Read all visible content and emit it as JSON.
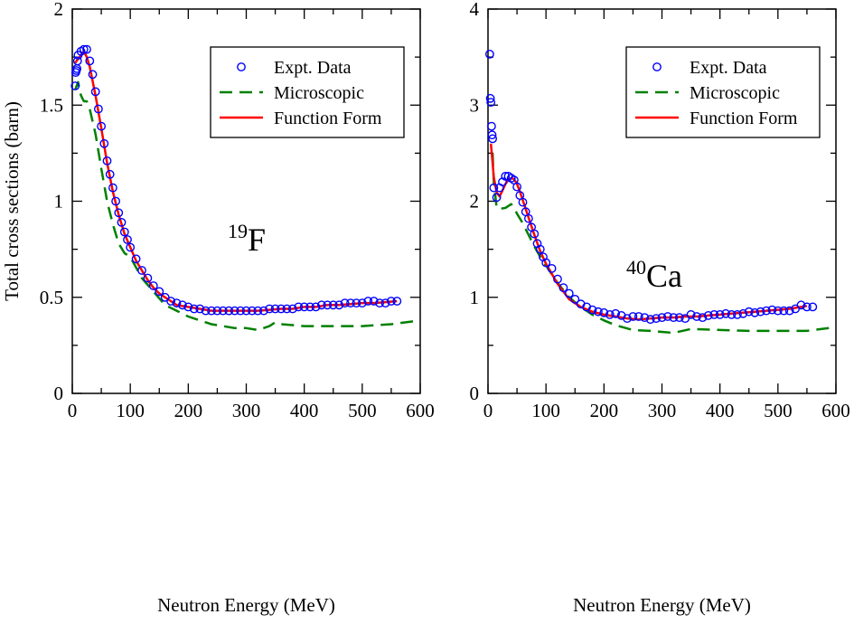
{
  "chart_data": [
    {
      "type": "scatter",
      "panel": "left",
      "annotation": {
        "mass": "19",
        "symbol": "F"
      },
      "xlabel": "Neutron Energy (MeV)",
      "ylabel": "Total cross sections (barn)",
      "xlim": [
        0,
        600
      ],
      "ylim": [
        0,
        2
      ],
      "xticks": [
        0,
        100,
        200,
        300,
        400,
        500,
        600
      ],
      "yticks": [
        0,
        0.5,
        1,
        1.5,
        2
      ],
      "ytick_labels": [
        "0",
        "0.5",
        "1",
        "1.5",
        "2"
      ],
      "legend_position": "top-right",
      "series": [
        {
          "name": "Expt. Data",
          "style": "open-circle",
          "color": "#0000ff",
          "x": [
            5,
            6,
            7,
            8,
            9,
            10,
            15,
            20,
            25,
            30,
            35,
            40,
            45,
            50,
            55,
            60,
            65,
            70,
            75,
            80,
            85,
            90,
            95,
            100,
            110,
            120,
            130,
            140,
            150,
            160,
            170,
            180,
            190,
            200,
            210,
            220,
            230,
            240,
            250,
            260,
            270,
            280,
            290,
            300,
            310,
            320,
            330,
            340,
            350,
            360,
            370,
            380,
            390,
            400,
            410,
            420,
            430,
            440,
            450,
            460,
            470,
            480,
            490,
            500,
            510,
            520,
            530,
            540,
            550,
            560
          ],
          "y": [
            1.6,
            1.67,
            1.68,
            1.69,
            1.73,
            1.76,
            1.78,
            1.79,
            1.79,
            1.73,
            1.66,
            1.57,
            1.48,
            1.39,
            1.3,
            1.21,
            1.14,
            1.07,
            1.0,
            0.94,
            0.89,
            0.84,
            0.8,
            0.76,
            0.7,
            0.64,
            0.6,
            0.56,
            0.53,
            0.5,
            0.48,
            0.47,
            0.46,
            0.45,
            0.44,
            0.44,
            0.43,
            0.43,
            0.43,
            0.43,
            0.43,
            0.43,
            0.43,
            0.43,
            0.43,
            0.43,
            0.43,
            0.44,
            0.44,
            0.44,
            0.44,
            0.44,
            0.45,
            0.45,
            0.45,
            0.45,
            0.46,
            0.46,
            0.46,
            0.46,
            0.47,
            0.47,
            0.47,
            0.47,
            0.48,
            0.48,
            0.47,
            0.47,
            0.48,
            0.48
          ]
        },
        {
          "name": "Microscopic",
          "style": "dashed",
          "color": "#008000",
          "x": [
            5,
            10,
            15,
            20,
            25,
            30,
            40,
            50,
            60,
            70,
            80,
            90,
            100,
            120,
            140,
            160,
            180,
            200,
            220,
            240,
            260,
            280,
            300,
            320,
            340,
            350,
            360,
            400,
            450,
            500,
            550,
            600
          ],
          "y": [
            1.58,
            1.62,
            1.55,
            1.52,
            1.52,
            1.48,
            1.35,
            1.17,
            1.0,
            0.88,
            0.78,
            0.73,
            0.71,
            0.6,
            0.53,
            0.46,
            0.43,
            0.4,
            0.38,
            0.36,
            0.35,
            0.34,
            0.34,
            0.33,
            0.35,
            0.37,
            0.36,
            0.35,
            0.35,
            0.35,
            0.36,
            0.38
          ]
        },
        {
          "name": "Function Form",
          "style": "solid",
          "color": "#ff0000",
          "x": [
            5,
            10,
            15,
            20,
            25,
            30,
            40,
            50,
            60,
            70,
            80,
            90,
            100,
            110,
            120,
            130,
            140,
            150,
            160,
            170,
            180,
            200,
            220,
            240,
            260,
            280,
            300,
            320,
            340,
            360,
            380,
            400,
            420,
            440,
            460,
            480,
            500,
            520,
            540,
            560
          ],
          "y": [
            1.72,
            1.74,
            1.76,
            1.78,
            1.75,
            1.7,
            1.55,
            1.38,
            1.2,
            1.05,
            0.93,
            0.83,
            0.76,
            0.69,
            0.64,
            0.59,
            0.55,
            0.52,
            0.5,
            0.48,
            0.46,
            0.45,
            0.44,
            0.43,
            0.43,
            0.43,
            0.43,
            0.43,
            0.435,
            0.44,
            0.44,
            0.45,
            0.45,
            0.46,
            0.46,
            0.465,
            0.47,
            0.47,
            0.475,
            0.48
          ]
        }
      ]
    },
    {
      "type": "scatter",
      "panel": "right",
      "annotation": {
        "mass": "40",
        "symbol": "Ca"
      },
      "xlabel": "Neutron Energy (MeV)",
      "ylabel": "",
      "xlim": [
        0,
        600
      ],
      "ylim": [
        0,
        4
      ],
      "xticks": [
        0,
        100,
        200,
        300,
        400,
        500,
        600
      ],
      "yticks": [
        0,
        1,
        2,
        3,
        4
      ],
      "ytick_labels": [
        "0",
        "1",
        "2",
        "3",
        "4"
      ],
      "legend_position": "top-right",
      "series": [
        {
          "name": "Expt. Data",
          "style": "open-circle",
          "color": "#0000ff",
          "x": [
            3,
            4,
            5,
            6,
            7,
            8,
            10,
            15,
            20,
            25,
            30,
            35,
            40,
            45,
            50,
            55,
            60,
            65,
            70,
            75,
            80,
            85,
            90,
            95,
            100,
            110,
            120,
            130,
            140,
            150,
            160,
            170,
            180,
            190,
            200,
            210,
            220,
            230,
            240,
            250,
            260,
            270,
            280,
            290,
            300,
            310,
            320,
            330,
            340,
            350,
            360,
            370,
            380,
            390,
            400,
            410,
            420,
            430,
            440,
            450,
            460,
            470,
            480,
            490,
            500,
            510,
            520,
            530,
            540,
            550,
            560
          ],
          "y": [
            3.53,
            3.07,
            3.03,
            2.78,
            2.69,
            2.65,
            2.14,
            2.04,
            2.14,
            2.2,
            2.26,
            2.26,
            2.24,
            2.22,
            2.15,
            2.06,
            1.99,
            1.89,
            1.82,
            1.73,
            1.66,
            1.56,
            1.5,
            1.42,
            1.36,
            1.3,
            1.19,
            1.1,
            1.04,
            0.98,
            0.93,
            0.9,
            0.87,
            0.85,
            0.84,
            0.82,
            0.83,
            0.81,
            0.78,
            0.8,
            0.8,
            0.79,
            0.77,
            0.78,
            0.79,
            0.8,
            0.79,
            0.79,
            0.78,
            0.82,
            0.8,
            0.79,
            0.81,
            0.82,
            0.82,
            0.83,
            0.82,
            0.82,
            0.83,
            0.85,
            0.84,
            0.85,
            0.86,
            0.87,
            0.86,
            0.86,
            0.86,
            0.88,
            0.92,
            0.9,
            0.9
          ]
        },
        {
          "name": "Microscopic",
          "style": "dashed",
          "color": "#008000",
          "x": [
            8,
            10,
            15,
            20,
            30,
            40,
            45,
            50,
            60,
            70,
            80,
            90,
            100,
            120,
            140,
            160,
            180,
            200,
            220,
            250,
            280,
            300,
            320,
            350,
            400,
            450,
            500,
            550,
            600
          ],
          "y": [
            2.5,
            2.2,
            1.93,
            1.92,
            1.93,
            1.97,
            1.93,
            1.87,
            1.77,
            1.65,
            1.53,
            1.42,
            1.33,
            1.15,
            1.0,
            0.9,
            0.82,
            0.76,
            0.71,
            0.66,
            0.65,
            0.64,
            0.63,
            0.67,
            0.66,
            0.65,
            0.65,
            0.65,
            0.69
          ]
        },
        {
          "name": "Function Form",
          "style": "solid",
          "color": "#ff0000",
          "x": [
            5,
            8,
            10,
            15,
            20,
            25,
            30,
            35,
            40,
            45,
            50,
            55,
            60,
            70,
            80,
            90,
            100,
            120,
            140,
            160,
            180,
            200,
            220,
            240,
            260,
            280,
            300,
            320,
            340,
            360,
            380,
            400,
            420,
            440,
            460,
            480,
            500,
            520,
            540,
            550
          ],
          "y": [
            2.6,
            2.4,
            2.25,
            2.09,
            2.05,
            2.11,
            2.18,
            2.22,
            2.24,
            2.23,
            2.18,
            2.1,
            2.01,
            1.83,
            1.65,
            1.48,
            1.35,
            1.14,
            0.98,
            0.9,
            0.85,
            0.82,
            0.8,
            0.78,
            0.77,
            0.78,
            0.79,
            0.79,
            0.8,
            0.8,
            0.81,
            0.82,
            0.83,
            0.84,
            0.85,
            0.86,
            0.87,
            0.88,
            0.9,
            0.91
          ]
        }
      ]
    }
  ]
}
